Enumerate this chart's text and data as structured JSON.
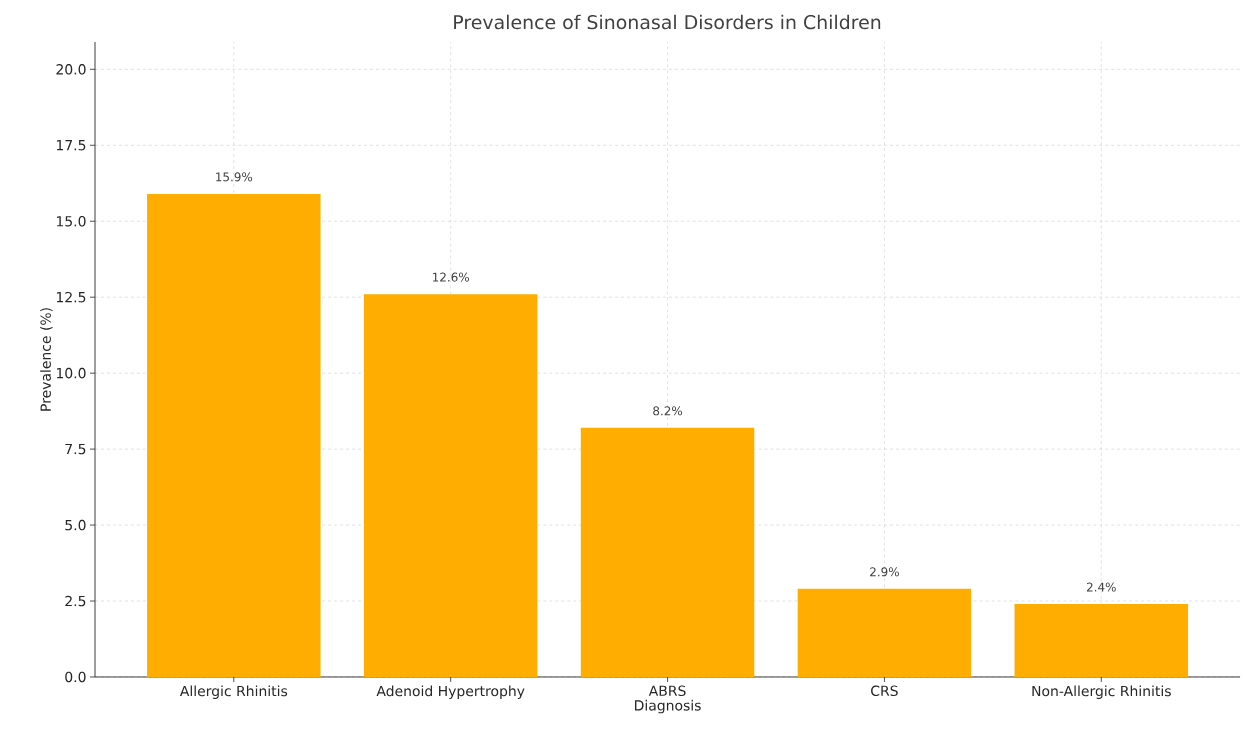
{
  "chart_data": {
    "type": "bar",
    "title": "Prevalence of Sinonasal Disorders in Children",
    "xlabel": "Diagnosis",
    "ylabel": "Prevalence (%)",
    "categories": [
      "Allergic Rhinitis",
      "Adenoid Hypertrophy",
      "ABRS",
      "CRS",
      "Non-Allergic Rhinitis"
    ],
    "values": [
      15.9,
      12.6,
      8.2,
      2.9,
      2.4
    ],
    "value_labels": [
      "15.9%",
      "12.6%",
      "8.2%",
      "2.9%",
      "2.4%"
    ],
    "color": "#ffae00",
    "ylim": [
      0,
      20.9
    ],
    "yticks": [
      {
        "value": 0,
        "label": "0.0"
      },
      {
        "value": 2.5,
        "label": "2.5"
      },
      {
        "value": 5,
        "label": "5.0"
      },
      {
        "value": 7.5,
        "label": "7.5"
      },
      {
        "value": 10,
        "label": "10.0"
      },
      {
        "value": 12.5,
        "label": "12.5"
      },
      {
        "value": 15,
        "label": "15.0"
      },
      {
        "value": 17.5,
        "label": "17.5"
      },
      {
        "value": 20,
        "label": "20.0"
      }
    ],
    "grid": true
  }
}
